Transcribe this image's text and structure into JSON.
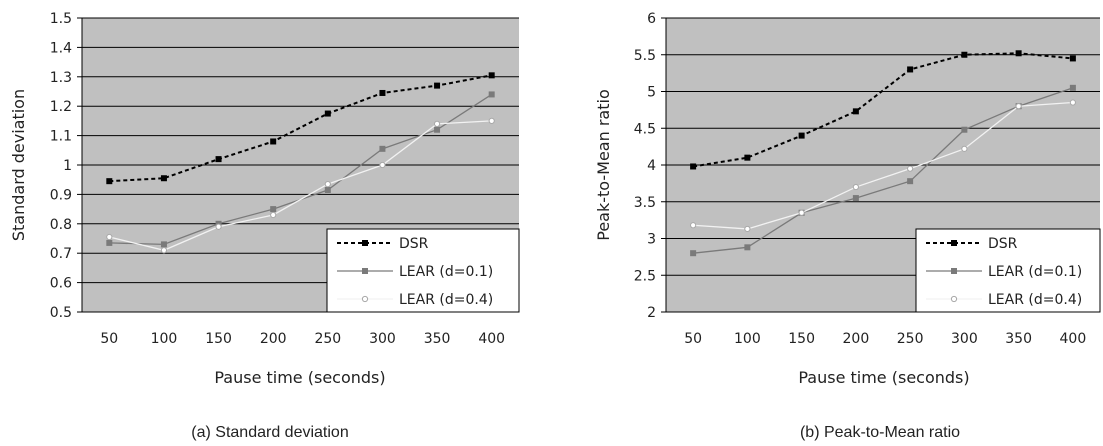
{
  "colors": {
    "plot_background": "#c0c0c0",
    "gridline": "#000000",
    "DSR": "#000000",
    "LEAR (d=0.1)": "#7a7a7a",
    "LEAR (d=0.4)": "#f2f2f2"
  },
  "chart_data": [
    {
      "type": "line",
      "caption": "(a) Standard deviation",
      "xlabel": "Pause time (seconds)",
      "ylabel": "Standard deviation",
      "categories": [
        "50",
        "100",
        "150",
        "200",
        "250",
        "300",
        "350",
        "400"
      ],
      "y_ticks": [
        "0.5",
        "0.6",
        "0.7",
        "0.8",
        "0.9",
        "1",
        "1.1",
        "1.2",
        "1.3",
        "1.4",
        "1.5"
      ],
      "ylim": [
        0.5,
        1.5
      ],
      "grid": "horizontal",
      "legend_position": "bottom-right",
      "series": [
        {
          "name": "DSR",
          "style": "dashed",
          "marker": "square",
          "values": [
            0.945,
            0.955,
            1.02,
            1.08,
            1.175,
            1.245,
            1.27,
            1.305
          ]
        },
        {
          "name": "LEAR (d=0.1)",
          "style": "solid",
          "marker": "square",
          "values": [
            0.735,
            0.73,
            0.8,
            0.85,
            0.915,
            1.055,
            1.12,
            1.24
          ]
        },
        {
          "name": "LEAR (d=0.4)",
          "style": "solid",
          "marker": "circle",
          "values": [
            0.755,
            0.71,
            0.79,
            0.83,
            0.935,
            1.0,
            1.14,
            1.15
          ]
        }
      ]
    },
    {
      "type": "line",
      "caption": "(b) Peak-to-Mean ratio",
      "xlabel": "Pause time (seconds)",
      "ylabel": "Peak-to-Mean ratio",
      "categories": [
        "50",
        "100",
        "150",
        "200",
        "250",
        "300",
        "350",
        "400"
      ],
      "y_ticks": [
        "2",
        "2.5",
        "3",
        "3.5",
        "4",
        "4.5",
        "5",
        "5.5",
        "6"
      ],
      "ylim": [
        2,
        6
      ],
      "grid": "horizontal",
      "legend_position": "bottom-right",
      "series": [
        {
          "name": "DSR",
          "style": "dashed",
          "marker": "square",
          "values": [
            3.98,
            4.1,
            4.4,
            4.73,
            5.3,
            5.5,
            5.52,
            5.45
          ]
        },
        {
          "name": "LEAR (d=0.1)",
          "style": "solid",
          "marker": "square",
          "values": [
            2.8,
            2.88,
            3.35,
            3.55,
            3.78,
            4.48,
            4.8,
            5.05
          ]
        },
        {
          "name": "LEAR (d=0.4)",
          "style": "solid",
          "marker": "circle",
          "values": [
            3.18,
            3.13,
            3.35,
            3.7,
            3.95,
            4.22,
            4.8,
            4.85
          ]
        }
      ]
    }
  ]
}
